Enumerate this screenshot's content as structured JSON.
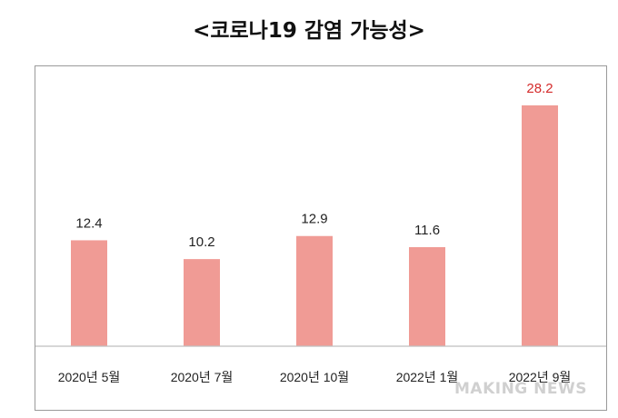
{
  "title": "<코로나19 감염 가능성>",
  "watermark": "MAKING NEWS",
  "colors": {
    "bar": "#f09b95",
    "highlight_label": "#d42b2b",
    "axis": "#bfbfbf"
  },
  "chart_data": {
    "type": "bar",
    "title": "<코로나19 감염 가능성>",
    "categories": [
      "2020년 5월",
      "2020년 7월",
      "2020년 10월",
      "2022년 1월",
      "2022년 9월"
    ],
    "values": [
      12.4,
      10.2,
      12.9,
      11.6,
      28.2
    ],
    "value_labels": [
      "12.4",
      "10.2",
      "12.9",
      "11.6",
      "28.2"
    ],
    "highlight_index": 4,
    "ylim": [
      0,
      30
    ],
    "grid": false,
    "legend": "none",
    "xlabel": "",
    "ylabel": ""
  }
}
